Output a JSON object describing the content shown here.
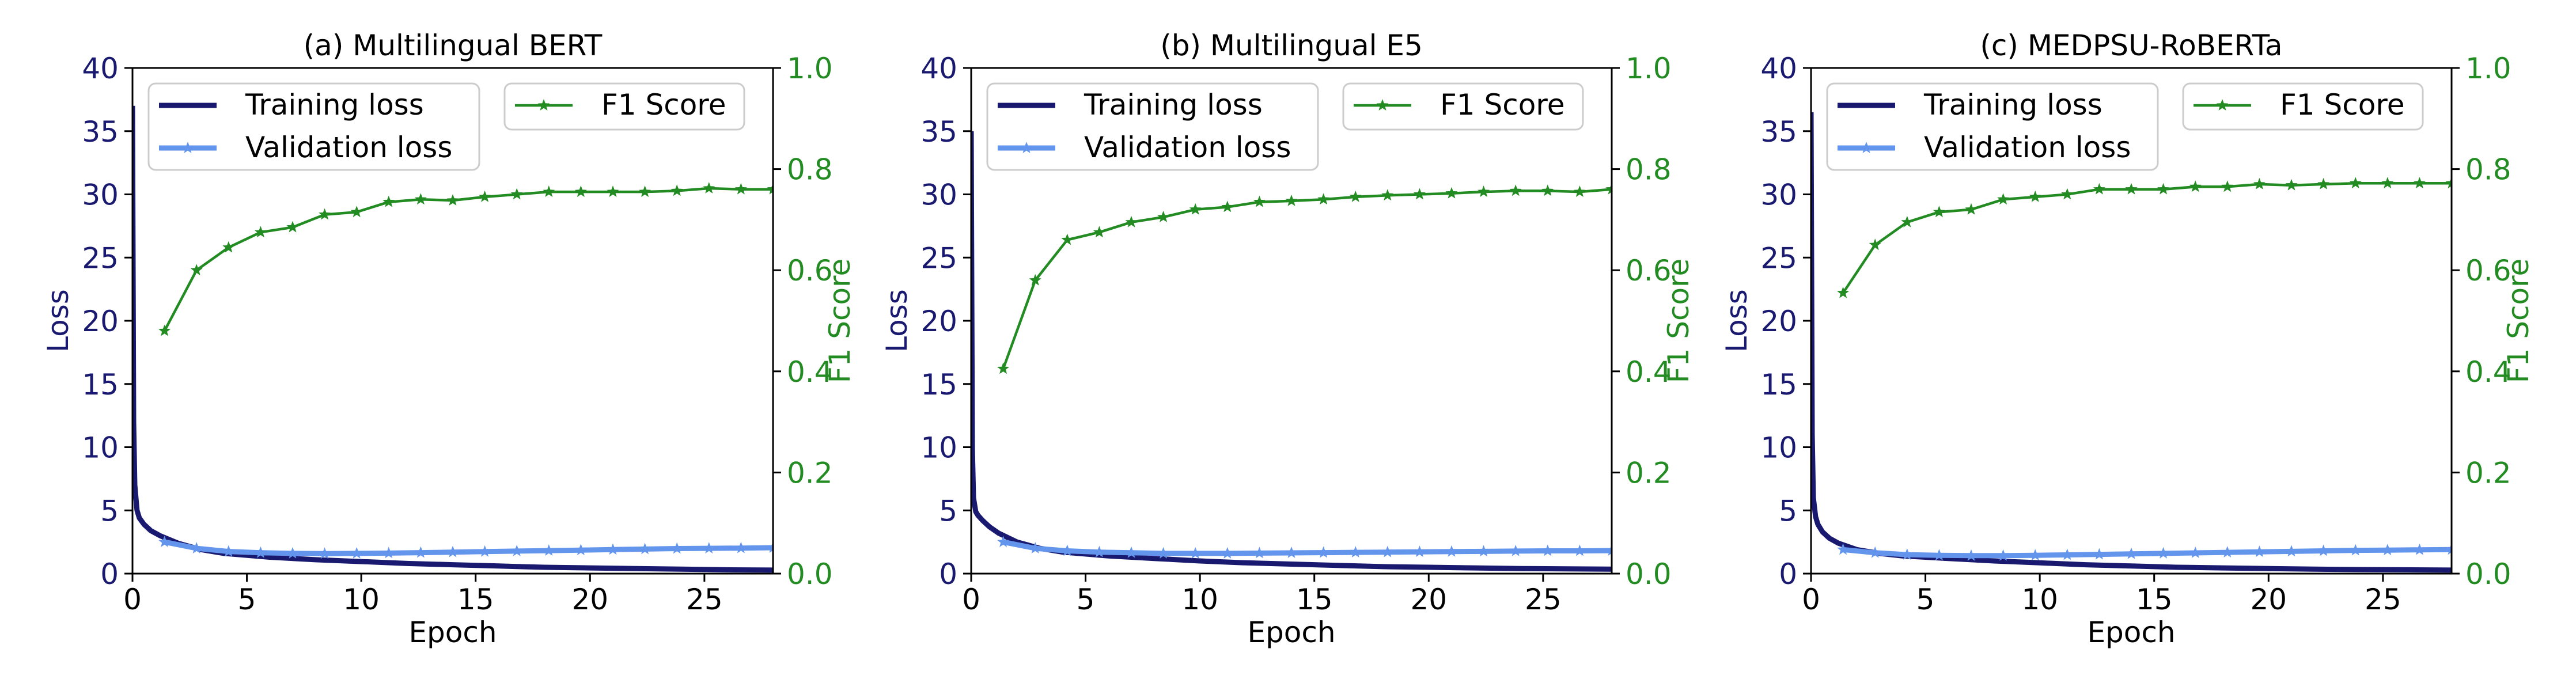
{
  "colors": {
    "training": "#191970",
    "validation": "#6495ED",
    "f1": "#228B22",
    "axis": "#000000",
    "left_tick": "#191970",
    "right_tick": "#228B22"
  },
  "chart_data": [
    {
      "type": "line",
      "title": "(a) Multilingual BERT",
      "xlabel": "Epoch",
      "ylabel": "Loss",
      "y2label": "F1 Score",
      "xlim": [
        0,
        28
      ],
      "ylim": [
        0,
        40
      ],
      "y2lim": [
        0,
        1.0
      ],
      "xticks": [
        0,
        5,
        10,
        15,
        20,
        25
      ],
      "xtick_labels": [
        "0",
        "5",
        "10",
        "15",
        "20",
        "25"
      ],
      "yticks": [
        0,
        5,
        10,
        15,
        20,
        25,
        30,
        35,
        40
      ],
      "ytick_labels": [
        "0",
        "5",
        "10",
        "15",
        "20",
        "25",
        "30",
        "35",
        "40"
      ],
      "y2ticks": [
        0,
        0.2,
        0.4,
        0.6,
        0.8,
        1.0
      ],
      "y2tick_labels": [
        "0.0",
        "0.2",
        "0.4",
        "0.6",
        "0.8",
        "1.0"
      ],
      "legend_left": "upper-left",
      "legend_right": "upper-right",
      "series": [
        {
          "name": "Training loss",
          "axis": "left",
          "marker": "none",
          "x": [
            0,
            0.05,
            0.1,
            0.2,
            0.3,
            0.5,
            0.8,
            1.2,
            2,
            3,
            4,
            6,
            8,
            10,
            12,
            14,
            16,
            18,
            20,
            22,
            24,
            26,
            28
          ],
          "values": [
            37,
            12,
            7,
            5,
            4.4,
            3.9,
            3.4,
            3.0,
            2.4,
            1.9,
            1.6,
            1.3,
            1.1,
            0.95,
            0.8,
            0.7,
            0.6,
            0.5,
            0.45,
            0.4,
            0.35,
            0.3,
            0.28
          ]
        },
        {
          "name": "Validation loss",
          "axis": "left",
          "marker": "star",
          "x": [
            1.4,
            2.8,
            4.2,
            5.6,
            7.0,
            8.4,
            9.8,
            11.2,
            12.6,
            14.0,
            15.4,
            16.8,
            18.2,
            19.6,
            21.0,
            22.4,
            23.8,
            25.2,
            26.6,
            28.0
          ],
          "values": [
            2.5,
            2.0,
            1.75,
            1.65,
            1.6,
            1.58,
            1.6,
            1.62,
            1.66,
            1.7,
            1.74,
            1.78,
            1.82,
            1.86,
            1.9,
            1.94,
            1.98,
            2.0,
            2.02,
            2.05
          ]
        },
        {
          "name": "F1 Score",
          "axis": "right",
          "marker": "star",
          "x": [
            1.4,
            2.8,
            4.2,
            5.6,
            7.0,
            8.4,
            9.8,
            11.2,
            12.6,
            14.0,
            15.4,
            16.8,
            18.2,
            19.6,
            21.0,
            22.4,
            23.8,
            25.2,
            26.6,
            28.0
          ],
          "values": [
            0.48,
            0.6,
            0.645,
            0.675,
            0.685,
            0.71,
            0.715,
            0.735,
            0.74,
            0.738,
            0.745,
            0.75,
            0.755,
            0.755,
            0.755,
            0.755,
            0.757,
            0.762,
            0.76,
            0.76
          ]
        }
      ]
    },
    {
      "type": "line",
      "title": "(b) Multilingual E5",
      "xlabel": "Epoch",
      "ylabel": "Loss",
      "y2label": "F1 Score",
      "xlim": [
        0,
        28
      ],
      "ylim": [
        0,
        40
      ],
      "y2lim": [
        0,
        1.0
      ],
      "xticks": [
        0,
        5,
        10,
        15,
        20,
        25
      ],
      "xtick_labels": [
        "0",
        "5",
        "10",
        "15",
        "20",
        "25"
      ],
      "yticks": [
        0,
        5,
        10,
        15,
        20,
        25,
        30,
        35,
        40
      ],
      "ytick_labels": [
        "0",
        "5",
        "10",
        "15",
        "20",
        "25",
        "30",
        "35",
        "40"
      ],
      "y2ticks": [
        0,
        0.2,
        0.4,
        0.6,
        0.8,
        1.0
      ],
      "y2tick_labels": [
        "0.0",
        "0.2",
        "0.4",
        "0.6",
        "0.8",
        "1.0"
      ],
      "legend_left": "upper-left",
      "legend_right": "upper-right",
      "series": [
        {
          "name": "Training loss",
          "axis": "left",
          "marker": "none",
          "x": [
            0,
            0.05,
            0.1,
            0.2,
            0.3,
            0.5,
            0.8,
            1.2,
            2,
            3,
            4,
            6,
            8,
            10,
            12,
            14,
            16,
            18,
            20,
            22,
            24,
            26,
            28
          ],
          "values": [
            35,
            10,
            6,
            4.9,
            4.6,
            4.2,
            3.7,
            3.2,
            2.5,
            2.0,
            1.7,
            1.4,
            1.2,
            1.0,
            0.85,
            0.75,
            0.65,
            0.55,
            0.5,
            0.45,
            0.4,
            0.38,
            0.35
          ]
        },
        {
          "name": "Validation loss",
          "axis": "left",
          "marker": "star",
          "x": [
            1.4,
            2.8,
            4.2,
            5.6,
            7.0,
            8.4,
            9.8,
            11.2,
            12.6,
            14.0,
            15.4,
            16.8,
            18.2,
            19.6,
            21.0,
            22.4,
            23.8,
            25.2,
            26.6,
            28.0
          ],
          "values": [
            2.5,
            2.0,
            1.8,
            1.7,
            1.65,
            1.6,
            1.6,
            1.6,
            1.62,
            1.64,
            1.66,
            1.68,
            1.7,
            1.72,
            1.74,
            1.76,
            1.78,
            1.8,
            1.8,
            1.82
          ]
        },
        {
          "name": "F1 Score",
          "axis": "right",
          "marker": "star",
          "x": [
            1.4,
            2.8,
            4.2,
            5.6,
            7.0,
            8.4,
            9.8,
            11.2,
            12.6,
            14.0,
            15.4,
            16.8,
            18.2,
            19.6,
            21.0,
            22.4,
            23.8,
            25.2,
            26.6,
            28.0
          ],
          "values": [
            0.405,
            0.58,
            0.66,
            0.675,
            0.695,
            0.705,
            0.72,
            0.725,
            0.735,
            0.737,
            0.74,
            0.745,
            0.748,
            0.75,
            0.752,
            0.755,
            0.757,
            0.757,
            0.755,
            0.76
          ]
        }
      ]
    },
    {
      "type": "line",
      "title": "(c) MEDPSU-RoBERTa",
      "xlabel": "Epoch",
      "ylabel": "Loss",
      "y2label": "F1 Score",
      "xlim": [
        0,
        28
      ],
      "ylim": [
        0,
        40
      ],
      "y2lim": [
        0,
        1.0
      ],
      "xticks": [
        0,
        5,
        10,
        15,
        20,
        25
      ],
      "xtick_labels": [
        "0",
        "5",
        "10",
        "15",
        "20",
        "25"
      ],
      "yticks": [
        0,
        5,
        10,
        15,
        20,
        25,
        30,
        35,
        40
      ],
      "ytick_labels": [
        "0",
        "5",
        "10",
        "15",
        "20",
        "25",
        "30",
        "35",
        "40"
      ],
      "y2ticks": [
        0,
        0.2,
        0.4,
        0.6,
        0.8,
        1.0
      ],
      "y2tick_labels": [
        "0.0",
        "0.2",
        "0.4",
        "0.6",
        "0.8",
        "1.0"
      ],
      "legend_left": "upper-left",
      "legend_right": "upper-right",
      "series": [
        {
          "name": "Training loss",
          "axis": "left",
          "marker": "none",
          "x": [
            0,
            0.05,
            0.1,
            0.2,
            0.3,
            0.5,
            0.8,
            1.2,
            2,
            3,
            4,
            6,
            8,
            10,
            12,
            14,
            16,
            18,
            20,
            22,
            24,
            26,
            28
          ],
          "values": [
            36.5,
            11,
            6,
            4.5,
            3.9,
            3.3,
            2.8,
            2.4,
            1.9,
            1.6,
            1.4,
            1.2,
            1.0,
            0.85,
            0.7,
            0.6,
            0.5,
            0.45,
            0.4,
            0.35,
            0.32,
            0.3,
            0.28
          ]
        },
        {
          "name": "Validation loss",
          "axis": "left",
          "marker": "star",
          "x": [
            1.4,
            2.8,
            4.2,
            5.6,
            7.0,
            8.4,
            9.8,
            11.2,
            12.6,
            14.0,
            15.4,
            16.8,
            18.2,
            19.6,
            21.0,
            22.4,
            23.8,
            25.2,
            26.6,
            28.0
          ],
          "values": [
            1.9,
            1.65,
            1.5,
            1.45,
            1.42,
            1.42,
            1.45,
            1.48,
            1.52,
            1.56,
            1.6,
            1.64,
            1.68,
            1.72,
            1.76,
            1.8,
            1.84,
            1.86,
            1.88,
            1.9
          ]
        },
        {
          "name": "F1 Score",
          "axis": "right",
          "marker": "star",
          "x": [
            1.4,
            2.8,
            4.2,
            5.6,
            7.0,
            8.4,
            9.8,
            11.2,
            12.6,
            14.0,
            15.4,
            16.8,
            18.2,
            19.6,
            21.0,
            22.4,
            23.8,
            25.2,
            26.6,
            28.0
          ],
          "values": [
            0.555,
            0.65,
            0.695,
            0.715,
            0.72,
            0.74,
            0.745,
            0.75,
            0.76,
            0.76,
            0.76,
            0.765,
            0.765,
            0.77,
            0.768,
            0.77,
            0.772,
            0.772,
            0.772,
            0.772
          ]
        }
      ]
    }
  ]
}
